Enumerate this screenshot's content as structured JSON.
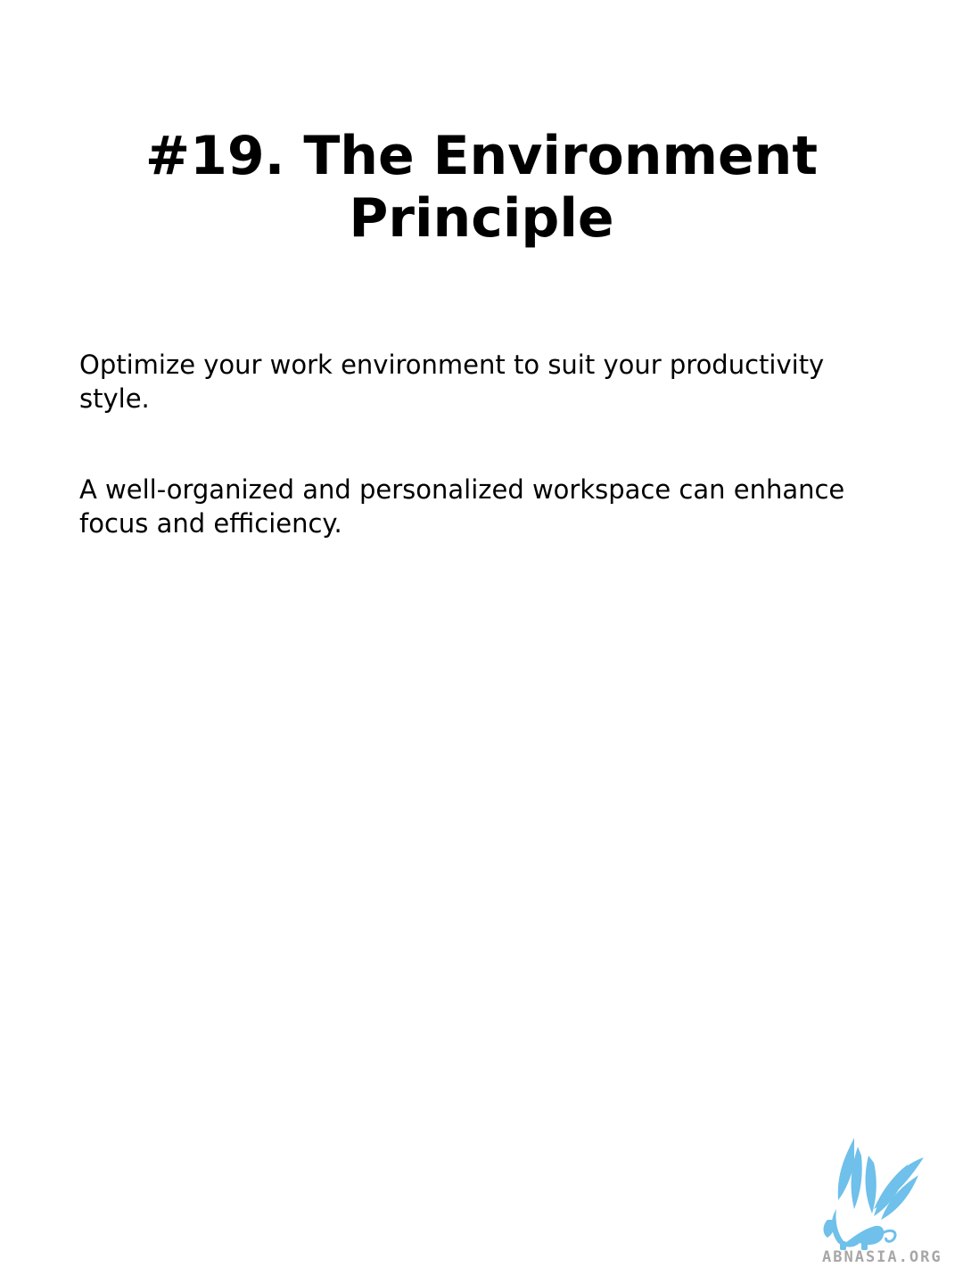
{
  "slide": {
    "title_line1": "#19. The Environment",
    "title_line2": "Principle",
    "paragraphs": [
      "Optimize your work environment to suit your productivity style.",
      "A well-organized and personalized workspace can enhance focus and efficiency."
    ]
  },
  "watermark": {
    "text": "ABNASIA.ORG",
    "icon": "griffin-logo-icon",
    "color": "#5ab4e5"
  }
}
